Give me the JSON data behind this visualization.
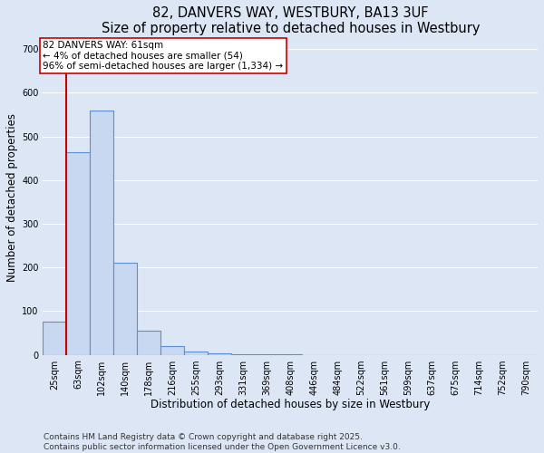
{
  "title_line1": "82, DANVERS WAY, WESTBURY, BA13 3UF",
  "title_line2": "Size of property relative to detached houses in Westbury",
  "xlabel": "Distribution of detached houses by size in Westbury",
  "ylabel": "Number of detached properties",
  "categories": [
    "25sqm",
    "63sqm",
    "102sqm",
    "140sqm",
    "178sqm",
    "216sqm",
    "255sqm",
    "293sqm",
    "331sqm",
    "369sqm",
    "408sqm",
    "446sqm",
    "484sqm",
    "522sqm",
    "561sqm",
    "599sqm",
    "637sqm",
    "675sqm",
    "714sqm",
    "752sqm",
    "790sqm"
  ],
  "bar_values": [
    75,
    465,
    560,
    210,
    55,
    20,
    8,
    3,
    2,
    1,
    1,
    0,
    0,
    0,
    0,
    0,
    0,
    0,
    0,
    0,
    0
  ],
  "bar_color": "#c8d8f0",
  "bar_edge_color": "#5b8fd4",
  "ylim": [
    0,
    720
  ],
  "yticks": [
    0,
    100,
    200,
    300,
    400,
    500,
    600,
    700
  ],
  "vline_color": "#cc0000",
  "annotation_text": "82 DANVERS WAY: 61sqm\n← 4% of detached houses are smaller (54)\n96% of semi-detached houses are larger (1,334) →",
  "footer_text": "Contains HM Land Registry data © Crown copyright and database right 2025.\nContains public sector information licensed under the Open Government Licence v3.0.",
  "background_color": "#dce6f5",
  "grid_color": "#ffffff",
  "title_fontsize": 10.5,
  "subtitle_fontsize": 9.5,
  "axis_label_fontsize": 8.5,
  "tick_fontsize": 7,
  "annotation_fontsize": 7.5,
  "footer_fontsize": 6.5
}
